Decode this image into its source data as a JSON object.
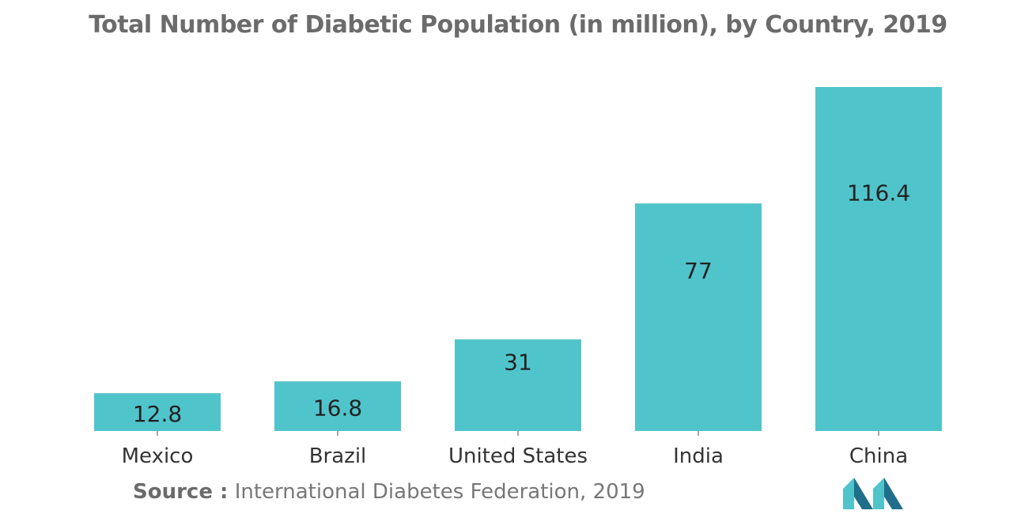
{
  "colors": {
    "bar": "#50c4cb",
    "logo_dark": "#1f6f8b",
    "logo_light": "#50c4cb"
  },
  "source": {
    "label": "Source :",
    "text": "International Diabetes Federation, 2019"
  },
  "logo": {
    "icon": "brand-logo-icon"
  },
  "chart_data": {
    "type": "bar",
    "title": "Total Number of Diabetic Population (in million), by Country, 2019",
    "categories": [
      "Mexico",
      "Brazil",
      "United States",
      "India",
      "China"
    ],
    "values": [
      12.8,
      16.8,
      31,
      77,
      116.4
    ],
    "value_labels": [
      "12.8",
      "16.8",
      "31",
      "77",
      "116.4"
    ],
    "xlabel": "",
    "ylabel": "",
    "ylim": [
      0,
      116.4
    ],
    "grid": false,
    "legend": "none"
  }
}
